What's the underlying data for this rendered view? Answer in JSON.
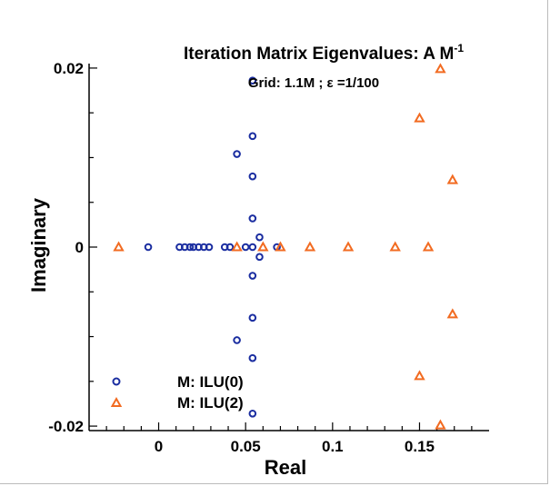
{
  "chart_data": {
    "type": "scatter",
    "title": "Iteration Matrix Eigenvalues:  A M",
    "title_superscript": "-1",
    "subtitle": "Grid: 1.1M ; ε =1/100",
    "xlabel": "Real",
    "ylabel": "Imaginary",
    "xlim": [
      -0.04,
      0.19
    ],
    "ylim": [
      -0.0205,
      0.0205
    ],
    "x_ticks": [
      0,
      0.05,
      0.1,
      0.15
    ],
    "x_tick_labels": [
      "0",
      "0.05",
      "0.1",
      "0.15"
    ],
    "y_ticks": [
      -0.02,
      0,
      0.02
    ],
    "y_tick_labels": [
      "-0.02",
      "0",
      "0.02"
    ],
    "grid": false,
    "legend_position": "bottom-left",
    "series": [
      {
        "name": "M: ILU(0)",
        "marker": "circle",
        "color": "#1a2da0",
        "points": [
          [
            -0.006,
            0
          ],
          [
            0.012,
            0
          ],
          [
            0.015,
            0
          ],
          [
            0.018,
            0
          ],
          [
            0.02,
            0
          ],
          [
            0.023,
            0
          ],
          [
            0.026,
            0
          ],
          [
            0.029,
            0
          ],
          [
            0.038,
            0
          ],
          [
            0.041,
            0
          ],
          [
            0.05,
            0
          ],
          [
            0.054,
            0
          ],
          [
            0.068,
            0
          ],
          [
            0.058,
            0.0011
          ],
          [
            0.058,
            -0.0011
          ],
          [
            0.054,
            0.0032
          ],
          [
            0.054,
            -0.0032
          ],
          [
            0.054,
            0.0079
          ],
          [
            0.054,
            -0.0079
          ],
          [
            0.045,
            0.0104
          ],
          [
            0.045,
            -0.0104
          ],
          [
            0.054,
            0.0124
          ],
          [
            0.054,
            -0.0124
          ],
          [
            0.054,
            0.0186
          ],
          [
            0.054,
            -0.0186
          ]
        ]
      },
      {
        "name": "M: ILU(2)",
        "marker": "triangle",
        "color": "#f26b21",
        "points": [
          [
            -0.023,
            0
          ],
          [
            0.045,
            0
          ],
          [
            0.06,
            0
          ],
          [
            0.07,
            0
          ],
          [
            0.087,
            0
          ],
          [
            0.109,
            0
          ],
          [
            0.136,
            0
          ],
          [
            0.155,
            0
          ],
          [
            0.15,
            0.0144
          ],
          [
            0.15,
            -0.0144
          ],
          [
            0.162,
            0.0199
          ],
          [
            0.162,
            -0.0199
          ],
          [
            0.169,
            0.0075
          ],
          [
            0.169,
            -0.0075
          ]
        ]
      }
    ]
  }
}
